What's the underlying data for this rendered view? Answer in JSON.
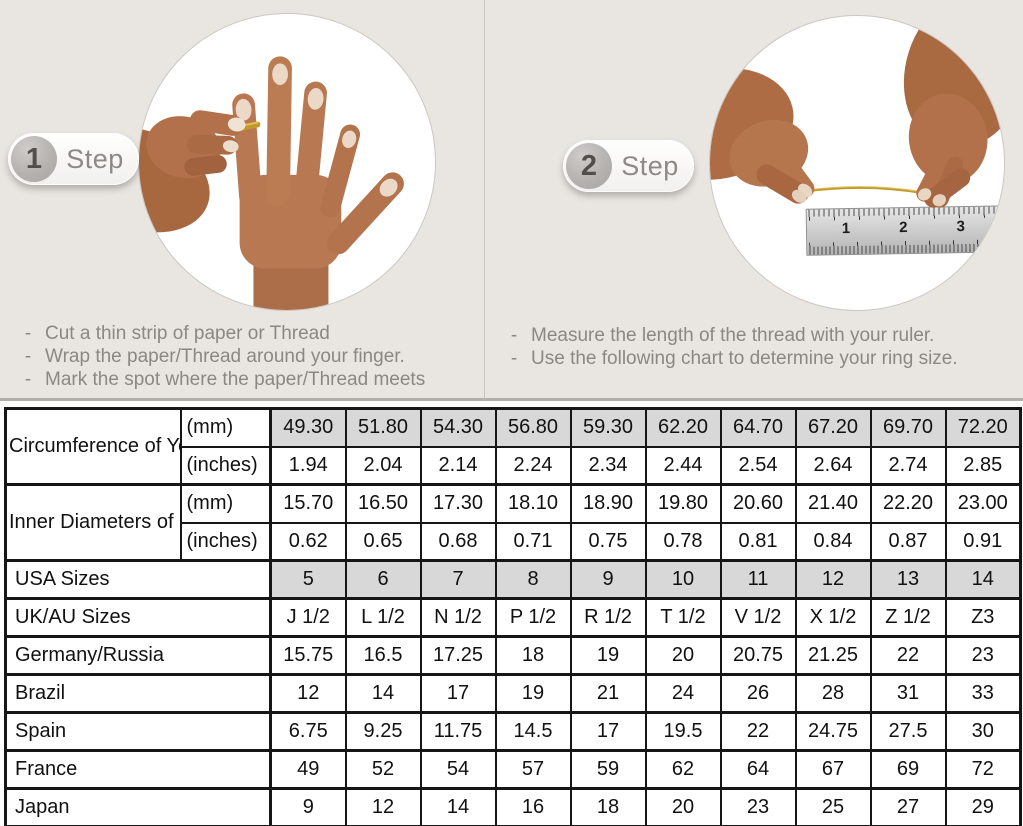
{
  "steps": [
    {
      "number": "1",
      "label": "Step",
      "instructions": [
        "Cut a thin strip of paper or Thread",
        "Wrap the paper/Thread around your finger.",
        "Mark the spot where the paper/Thread meets"
      ]
    },
    {
      "number": "2",
      "label": "Step",
      "instructions": [
        "Measure the length of the thread with your ruler.",
        "Use the following chart to determine your ring size."
      ]
    }
  ],
  "ruler": {
    "numbers": [
      "1",
      "2",
      "3"
    ]
  },
  "table": {
    "rows": [
      {
        "label": "Circumference of Your Finger",
        "rowspan": 2,
        "unit": "(mm)",
        "shaded": true,
        "thick": true,
        "values": [
          "49.30",
          "51.80",
          "54.30",
          "56.80",
          "59.30",
          "62.20",
          "64.70",
          "67.20",
          "69.70",
          "72.20"
        ]
      },
      {
        "unit": "(inches)",
        "values": [
          "1.94",
          "2.04",
          "2.14",
          "2.24",
          "2.34",
          "2.44",
          "2.54",
          "2.64",
          "2.74",
          "2.85"
        ]
      },
      {
        "label": "Inner Diameters of Rings",
        "rowspan": 2,
        "unit": "(mm)",
        "thick": true,
        "values": [
          "15.70",
          "16.50",
          "17.30",
          "18.10",
          "18.90",
          "19.80",
          "20.60",
          "21.40",
          "22.20",
          "23.00"
        ]
      },
      {
        "unit": "(inches)",
        "values": [
          "0.62",
          "0.65",
          "0.68",
          "0.71",
          "0.75",
          "0.78",
          "0.81",
          "0.84",
          "0.87",
          "0.91"
        ]
      },
      {
        "label": "USA Sizes",
        "colspan": 2,
        "shaded": true,
        "thick": true,
        "values": [
          "5",
          "6",
          "7",
          "8",
          "9",
          "10",
          "11",
          "12",
          "13",
          "14"
        ]
      },
      {
        "label": "UK/AU Sizes",
        "colspan": 2,
        "thick": true,
        "values": [
          "J 1/2",
          "L 1/2",
          "N 1/2",
          "P 1/2",
          "R 1/2",
          "T 1/2",
          "V 1/2",
          "X 1/2",
          "Z 1/2",
          "Z3"
        ]
      },
      {
        "label": "Germany/Russia",
        "colspan": 2,
        "thick": true,
        "values": [
          "15.75",
          "16.5",
          "17.25",
          "18",
          "19",
          "20",
          "20.75",
          "21.25",
          "22",
          "23"
        ]
      },
      {
        "label": "Brazil",
        "colspan": 2,
        "thick": true,
        "values": [
          "12",
          "14",
          "17",
          "19",
          "21",
          "24",
          "26",
          "28",
          "31",
          "33"
        ]
      },
      {
        "label": "Spain",
        "colspan": 2,
        "thick": true,
        "values": [
          "6.75",
          "9.25",
          "11.75",
          "14.5",
          "17",
          "19.5",
          "22",
          "24.75",
          "27.5",
          "30"
        ]
      },
      {
        "label": "France",
        "colspan": 2,
        "thick": true,
        "values": [
          "49",
          "52",
          "54",
          "57",
          "59",
          "62",
          "64",
          "67",
          "69",
          "72"
        ]
      },
      {
        "label": "Japan",
        "colspan": 2,
        "thick": true,
        "values": [
          "9",
          "12",
          "14",
          "16",
          "18",
          "20",
          "23",
          "25",
          "27",
          "29"
        ]
      }
    ]
  },
  "colors": {
    "top_background": "#e9e6e2",
    "shaded_cell": "#d8d8d8",
    "table_border": "#161616",
    "gray_text": "#8b8883",
    "thread_gold": "#c29a2b"
  }
}
